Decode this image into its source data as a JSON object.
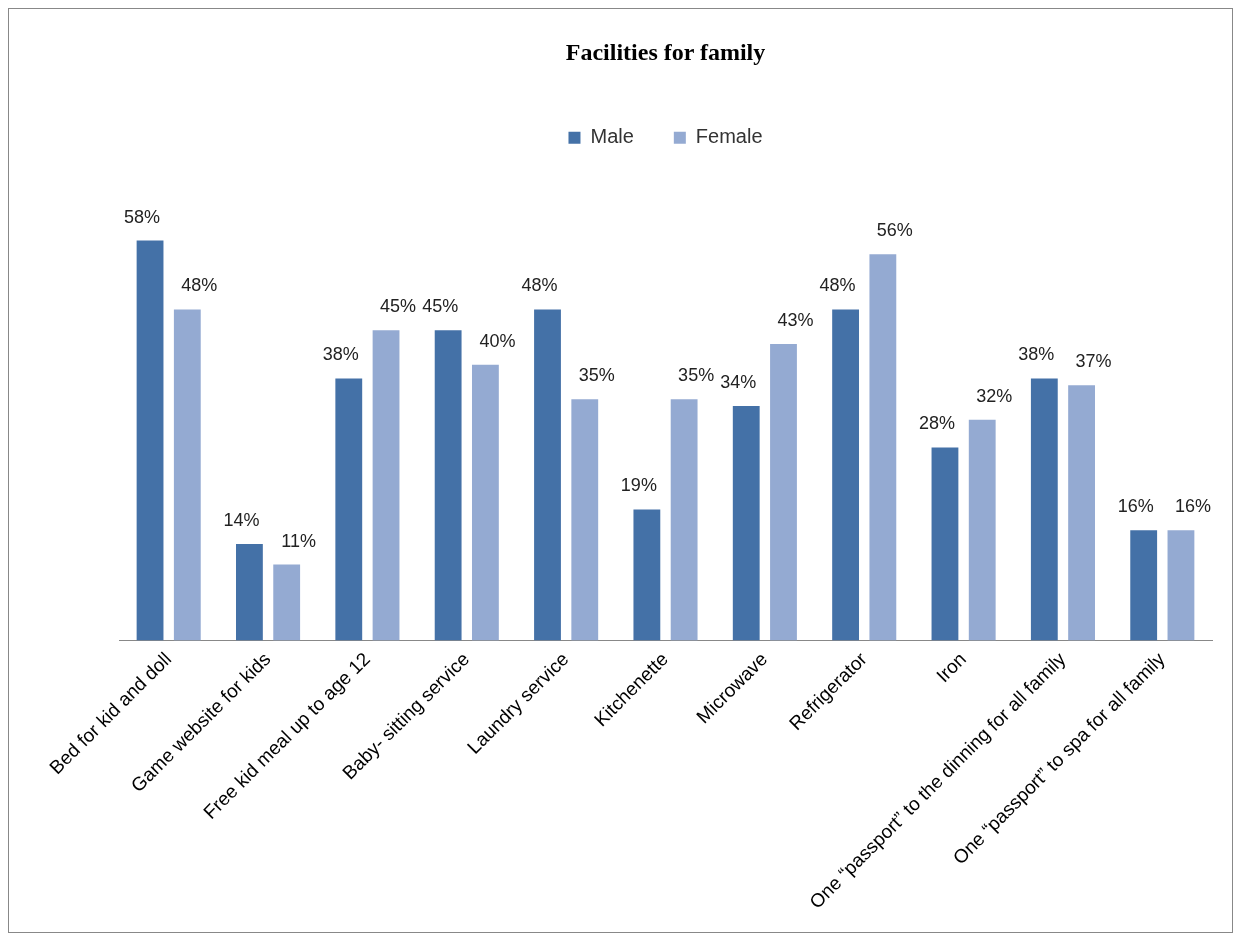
{
  "chart_data": {
    "type": "bar",
    "title": "Facilities for family",
    "categories": [
      "Bed for kid and doll",
      "Game website for kids",
      "Free kid meal up to age 12",
      "Baby- sitting service",
      "Laundry service",
      "Kitchenette",
      "Microwave",
      "Refrigerator",
      "Iron",
      "One “passport” to the dinning for all family",
      "One “passport” to spa for all family"
    ],
    "series": [
      {
        "name": "Male",
        "color": "#4471a7",
        "values": [
          58,
          14,
          38,
          45,
          48,
          19,
          34,
          48,
          28,
          38,
          16
        ],
        "value_labels": [
          "58%",
          "14%",
          "38%",
          "45%",
          "48%",
          "19%",
          "34%",
          "48%",
          "28%",
          "38%",
          "16%"
        ]
      },
      {
        "name": "Female",
        "color": "#94aad2",
        "values": [
          48,
          11,
          45,
          40,
          35,
          35,
          43,
          56,
          32,
          37,
          16
        ],
        "value_labels": [
          "48%",
          "11%",
          "45%",
          "40%",
          "35%",
          "35%",
          "43%",
          "56%",
          "32%",
          "37%",
          "16%"
        ]
      }
    ],
    "legend": "top",
    "grid": false
  }
}
